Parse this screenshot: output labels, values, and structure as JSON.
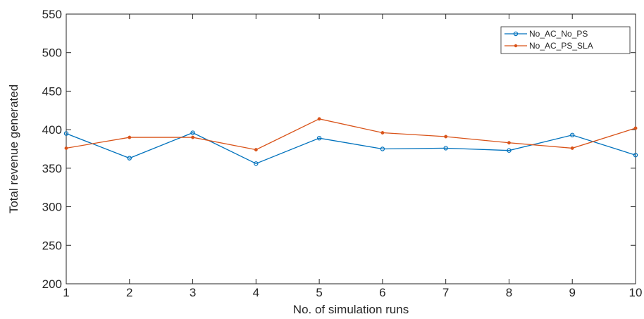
{
  "chart_data": {
    "type": "line",
    "title": "",
    "xlabel": "No. of simulation runs",
    "ylabel": "Total revenue generated",
    "x": [
      1,
      2,
      3,
      4,
      5,
      6,
      7,
      8,
      9,
      10
    ],
    "xlim": [
      1,
      10
    ],
    "ylim": [
      200,
      550
    ],
    "xticks": [
      1,
      2,
      3,
      4,
      5,
      6,
      7,
      8,
      9,
      10
    ],
    "yticks": [
      200,
      250,
      300,
      350,
      400,
      450,
      500,
      550
    ],
    "grid": false,
    "legend_position": "top-right",
    "series": [
      {
        "name": "No_AC_No_PS",
        "color": "#0072BD",
        "marker": "circle",
        "values": [
          395,
          363,
          396,
          356,
          389,
          375,
          376,
          373,
          393,
          367
        ]
      },
      {
        "name": "No_AC_PS_SLA",
        "color": "#D95319",
        "marker": "dot",
        "values": [
          376,
          390,
          390,
          374,
          414,
          396,
          391,
          383,
          376,
          402
        ]
      }
    ]
  }
}
